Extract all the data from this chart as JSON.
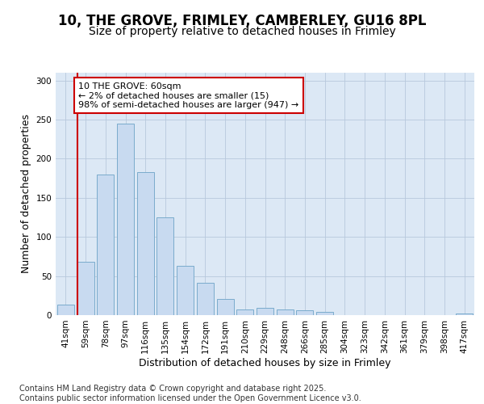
{
  "title_line1": "10, THE GROVE, FRIMLEY, CAMBERLEY, GU16 8PL",
  "title_line2": "Size of property relative to detached houses in Frimley",
  "xlabel": "Distribution of detached houses by size in Frimley",
  "ylabel": "Number of detached properties",
  "categories": [
    "41sqm",
    "59sqm",
    "78sqm",
    "97sqm",
    "116sqm",
    "135sqm",
    "154sqm",
    "172sqm",
    "191sqm",
    "210sqm",
    "229sqm",
    "248sqm",
    "266sqm",
    "285sqm",
    "304sqm",
    "323sqm",
    "342sqm",
    "361sqm",
    "379sqm",
    "398sqm",
    "417sqm"
  ],
  "values": [
    13,
    68,
    180,
    245,
    183,
    125,
    63,
    41,
    21,
    7,
    9,
    7,
    6,
    4,
    0,
    0,
    0,
    0,
    0,
    0,
    2
  ],
  "bar_color": "#c8daf0",
  "bar_edge_color": "#7aabcc",
  "marker_color": "#cc0000",
  "annotation_text": "10 THE GROVE: 60sqm\n← 2% of detached houses are smaller (15)\n98% of semi-detached houses are larger (947) →",
  "annotation_box_facecolor": "#ffffff",
  "annotation_box_edgecolor": "#cc0000",
  "ylim": [
    0,
    310
  ],
  "yticks": [
    0,
    50,
    100,
    150,
    200,
    250,
    300
  ],
  "fig_bg_color": "#ffffff",
  "plot_bg_color": "#dce8f5",
  "grid_color": "#b8c8dc",
  "footer_text": "Contains HM Land Registry data © Crown copyright and database right 2025.\nContains public sector information licensed under the Open Government Licence v3.0.",
  "title_fontsize": 12,
  "subtitle_fontsize": 10,
  "axis_label_fontsize": 9,
  "tick_fontsize": 7.5,
  "annotation_fontsize": 8,
  "footer_fontsize": 7
}
